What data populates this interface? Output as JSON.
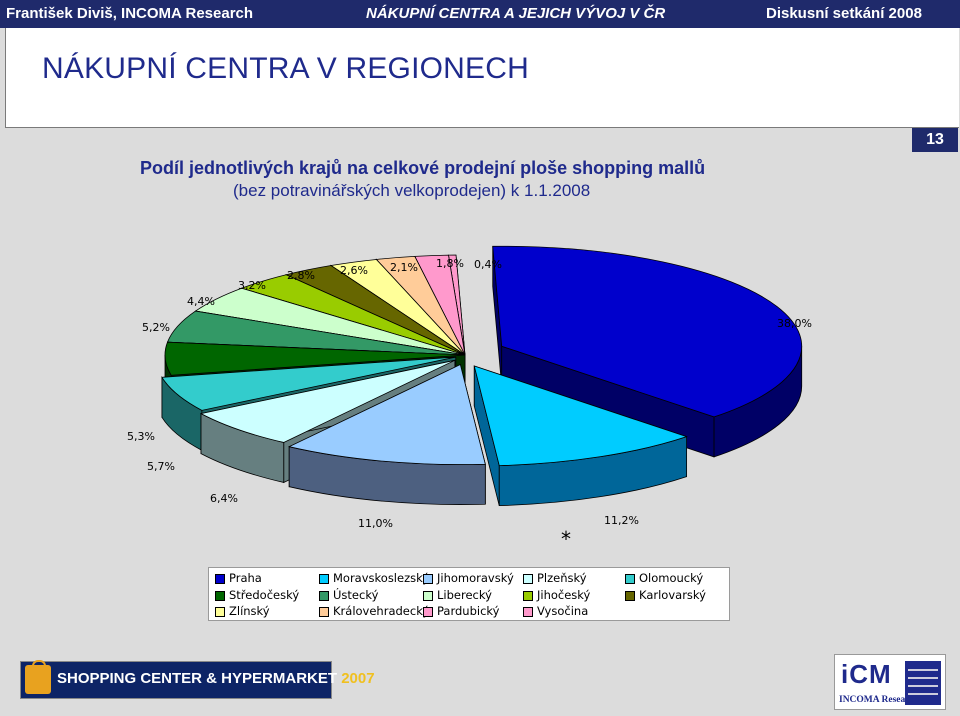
{
  "header": {
    "left": "František Diviš, INCOMA Research",
    "center": "NÁKUPNÍ CENTRA A JEJICH VÝVOJ V ČR",
    "right": "Diskusní setkání 2008"
  },
  "page_title": "NÁKUPNÍ CENTRA V REGIONECH",
  "slide_number": "13",
  "chart_data": {
    "type": "pie",
    "title": "Podíl jednotlivých krajů na celkové prodejní ploše shopping mallů",
    "subtitle": "(bez potravinářských velkoprodejen) k 1.1.2008",
    "categories": [
      "Praha",
      "Moravskoslezský",
      "Jihomoravský",
      "Plzeňský",
      "Olomoucký",
      "Středočeský",
      "Ústecký",
      "Liberecký",
      "Jihočeský",
      "Karlovarský",
      "Zlínský",
      "Královehradecký",
      "Pardubický",
      "Vysočina"
    ],
    "values": [
      38.0,
      11.2,
      11.0,
      6.4,
      5.7,
      5.3,
      5.2,
      4.4,
      3.2,
      2.8,
      2.6,
      2.1,
      1.8,
      0.4
    ],
    "labels": [
      "38,0%",
      "11,2%",
      "11,0%",
      "6,4%",
      "5,7%",
      "5,3%",
      "5,2%",
      "4,4%",
      "3,2%",
      "2,8%",
      "2,6%",
      "2,1%",
      "1,8%",
      "0,4%"
    ],
    "colors": [
      "#0000cc",
      "#00ccff",
      "#99ccff",
      "#ccffff",
      "#33cccc",
      "#006600",
      "#339966",
      "#ccffcc",
      "#99cc00",
      "#666600",
      "#ffff99",
      "#ffcc99",
      "#ff99cc",
      "#ff99cc"
    ],
    "side_colors": [
      "#000066",
      "#006699",
      "#4d6080",
      "#667f80",
      "#1a6666",
      "#003300",
      "#1a4d33",
      "#667f66",
      "#4d6600",
      "#333300",
      "#7f7f4d",
      "#7f664d",
      "#7f4d66",
      "#7f4d66"
    ],
    "legend_placement": "bottom",
    "annotation": "*"
  }
}
